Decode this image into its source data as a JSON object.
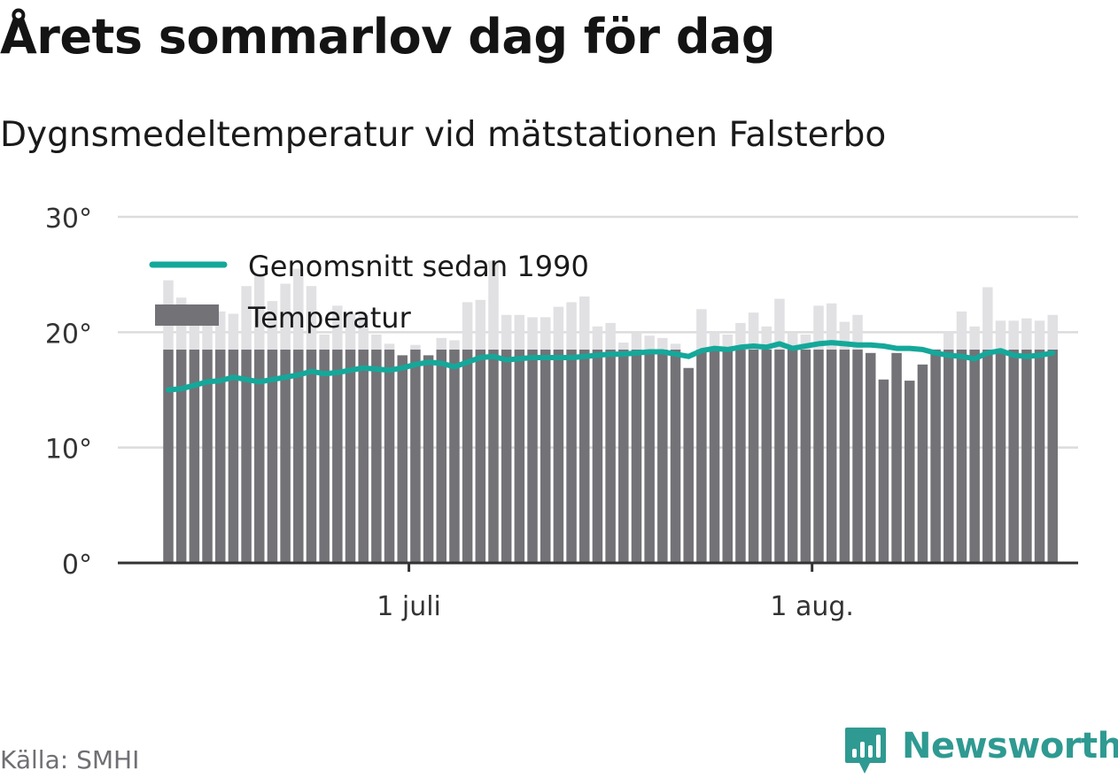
{
  "header": {
    "title": "Årets sommarlov dag för dag",
    "subtitle": "Dygnsmedeltemperatur vid mätstationen Falsterbo"
  },
  "footer": {
    "source": "Källa: SMHI",
    "brand": "Newsworthy"
  },
  "colors": {
    "bar": "#737277",
    "bar_highlight": "#e1e1e4",
    "average_line": "#14a89a",
    "grid": "#dcdcdc",
    "axis": "#333333",
    "brand": "#2f9a91"
  },
  "chart_data": {
    "type": "bar",
    "title": "Årets sommarlov dag för dag",
    "subtitle": "Dygnsmedeltemperatur vid mätstationen Falsterbo",
    "x_start": "2018-06-12",
    "x_ticks": [
      {
        "date": "2018-07-01",
        "label": "1 juli"
      },
      {
        "date": "2018-08-01",
        "label": "1 aug."
      }
    ],
    "y_ticks": [
      {
        "value": 0,
        "label": "0°"
      },
      {
        "value": 10,
        "label": "10°"
      },
      {
        "value": 20,
        "label": "20°"
      },
      {
        "value": 30,
        "label": "30°"
      }
    ],
    "ylim": [
      0,
      30
    ],
    "grid": true,
    "legend_position": "top-left",
    "legend": [
      {
        "name": "Genomsnitt sedan 1990",
        "kind": "line"
      },
      {
        "name": "Temperatur",
        "kind": "bar"
      }
    ],
    "series": [
      {
        "name": "Temperatur",
        "type": "bar",
        "values": [
          24.5,
          23.0,
          22.0,
          20.8,
          21.8,
          21.6,
          24.0,
          25.0,
          22.7,
          24.2,
          25.5,
          24.0,
          19.8,
          22.3,
          21.6,
          21.5,
          19.8,
          19.0,
          18.0,
          18.9,
          18.0,
          19.5,
          19.3,
          22.6,
          22.8,
          26.2,
          21.5,
          21.5,
          21.3,
          21.3,
          22.2,
          22.6,
          23.1,
          20.5,
          20.8,
          19.1,
          20.0,
          19.7,
          19.5,
          19.0,
          16.9,
          22.0,
          20.0,
          19.8,
          20.8,
          21.7,
          20.5,
          22.9,
          19.9,
          19.8,
          22.3,
          22.5,
          20.9,
          21.5,
          18.2,
          15.9,
          18.2,
          15.8,
          17.2,
          18.5,
          20.0,
          21.8,
          20.5,
          23.9,
          21.0,
          21.0,
          21.2,
          21.0,
          21.5
        ]
      },
      {
        "name": "Genomsnitt sedan 1990",
        "type": "line",
        "values": [
          15.0,
          15.1,
          15.4,
          15.7,
          15.8,
          16.1,
          15.9,
          15.7,
          15.9,
          16.1,
          16.3,
          16.6,
          16.4,
          16.5,
          16.7,
          16.9,
          16.8,
          16.7,
          16.9,
          17.2,
          17.4,
          17.3,
          17.0,
          17.4,
          17.8,
          17.9,
          17.6,
          17.7,
          17.8,
          17.8,
          17.8,
          17.8,
          17.9,
          18.0,
          18.1,
          18.1,
          18.2,
          18.3,
          18.3,
          18.1,
          17.9,
          18.4,
          18.6,
          18.5,
          18.7,
          18.8,
          18.7,
          19.0,
          18.6,
          18.8,
          19.0,
          19.1,
          19.0,
          18.9,
          18.9,
          18.8,
          18.6,
          18.6,
          18.5,
          18.2,
          18.0,
          17.9,
          17.7,
          18.2,
          18.4,
          18.0,
          17.9,
          18.0,
          18.2
        ]
      }
    ]
  }
}
